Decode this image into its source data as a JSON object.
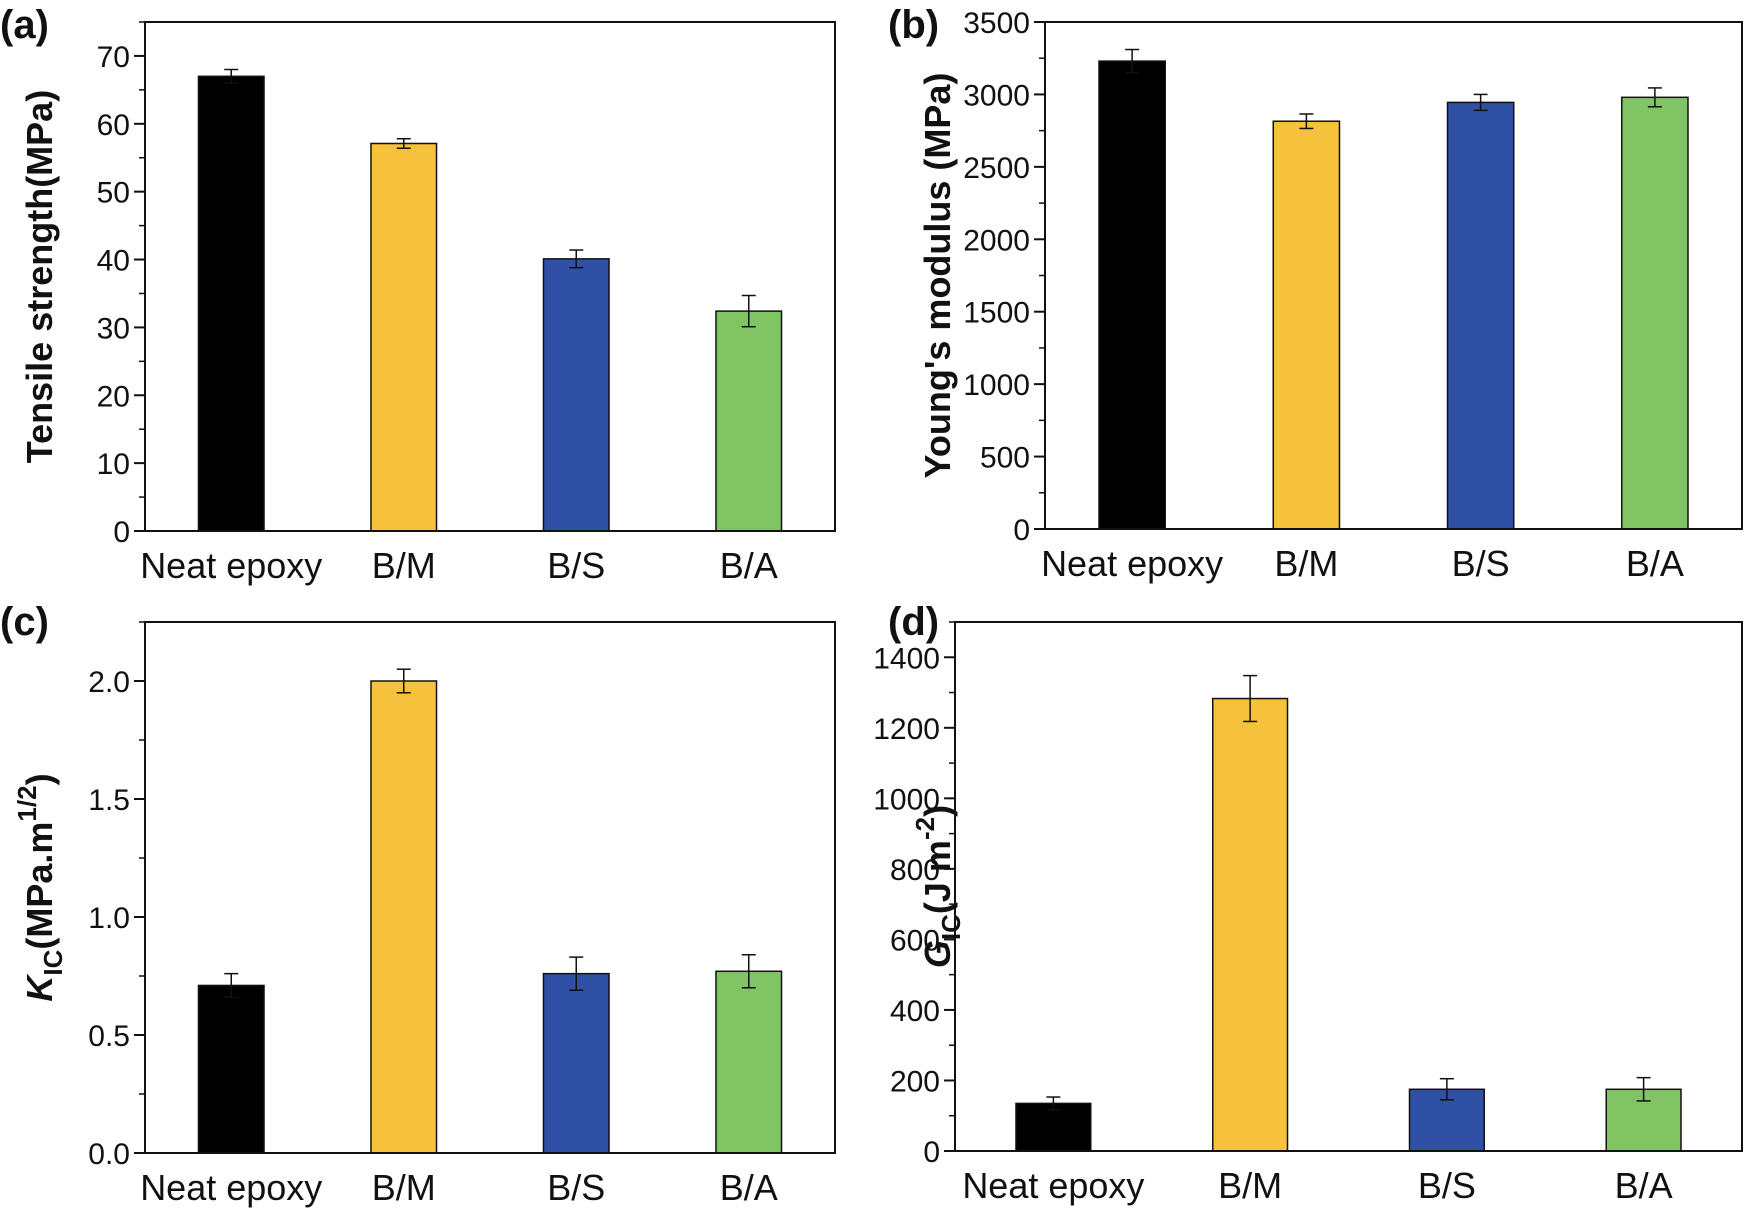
{
  "chart_data": [
    {
      "type": "bar",
      "panel": "(a)",
      "categories": [
        "Neat epoxy",
        "B/M",
        "B/S",
        "B/A"
      ],
      "values": [
        67.0,
        57.1,
        40.1,
        32.4
      ],
      "errors": [
        1.0,
        0.7,
        1.3,
        2.3
      ],
      "colors": [
        "#000000",
        "#f6c23c",
        "#3050a6",
        "#80c464"
      ],
      "title": "",
      "xlabel": "",
      "ylabel": "Tensile strength(MPa)",
      "ylim": [
        0,
        75
      ],
      "yticks": [
        0,
        10,
        20,
        30,
        40,
        50,
        60,
        70
      ],
      "ytick_labels": [
        "0",
        "10",
        "20",
        "30",
        "40",
        "50",
        "60",
        "70"
      ],
      "minor_step": 5,
      "ylabel_parts": null
    },
    {
      "type": "bar",
      "panel": "(b)",
      "categories": [
        "Neat epoxy",
        "B/M",
        "B/S",
        "B/A"
      ],
      "values": [
        3230,
        2815,
        2945,
        2980
      ],
      "errors": [
        80,
        50,
        55,
        65
      ],
      "colors": [
        "#000000",
        "#f6c23c",
        "#3050a6",
        "#80c464"
      ],
      "title": "",
      "xlabel": "",
      "ylabel": "Young's modulus (MPa)",
      "ylim": [
        0,
        3500
      ],
      "yticks": [
        0,
        500,
        1000,
        1500,
        2000,
        2500,
        3000,
        3500
      ],
      "ytick_labels": [
        "0",
        "500",
        "1000",
        "1500",
        "2000",
        "2500",
        "3000",
        "3500"
      ],
      "minor_step": 250,
      "ylabel_parts": null
    },
    {
      "type": "bar",
      "panel": "(c)",
      "categories": [
        "Neat epoxy",
        "B/M",
        "B/S",
        "B/A"
      ],
      "values": [
        0.71,
        2.0,
        0.76,
        0.77
      ],
      "errors": [
        0.05,
        0.05,
        0.07,
        0.07
      ],
      "colors": [
        "#000000",
        "#f6c23c",
        "#3050a6",
        "#80c464"
      ],
      "title": "",
      "xlabel": "",
      "ylabel": "KIC(MPa.m1/2)",
      "ylim": [
        0,
        2.25
      ],
      "yticks": [
        0,
        0.5,
        1.0,
        1.5,
        2.0
      ],
      "ytick_labels": [
        "0.0",
        "0.5",
        "1.0",
        "1.5",
        "2.0"
      ],
      "minor_step": 0.25,
      "ylabel_parts": {
        "main": "K",
        "sub": "IC",
        "rest": "(MPa.m",
        "sup": "1/2",
        "close": ")"
      }
    },
    {
      "type": "bar",
      "panel": "(d)",
      "categories": [
        "Neat epoxy",
        "B/M",
        "B/S",
        "B/A"
      ],
      "values": [
        135,
        1283,
        175,
        175
      ],
      "errors": [
        18,
        65,
        30,
        33
      ],
      "colors": [
        "#000000",
        "#f6c23c",
        "#3050a6",
        "#80c464"
      ],
      "title": "",
      "xlabel": "",
      "ylabel": "GIC(J m-2)",
      "ylim": [
        0,
        1500
      ],
      "yticks": [
        0,
        200,
        400,
        600,
        800,
        1000,
        1200,
        1400
      ],
      "ytick_labels": [
        "0",
        "200",
        "400",
        "600",
        "800",
        "1000",
        "1200",
        "1400"
      ],
      "minor_step": 100,
      "ylabel_parts": {
        "main": "G",
        "sub": "IC",
        "rest": "(J m",
        "sup": "-2",
        "close": ")"
      }
    }
  ]
}
